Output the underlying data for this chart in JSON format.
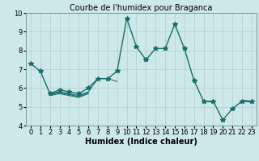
{
  "title": "Courbe de l'humidex pour Braganca",
  "xlabel": "Humidex (Indice chaleur)",
  "background_color": "#cde8e8",
  "grid_color": "#b8d0d0",
  "line_color": "#1a6e6e",
  "x_values": [
    0,
    1,
    2,
    3,
    4,
    5,
    6,
    7,
    8,
    9,
    10,
    11,
    12,
    13,
    14,
    15,
    16,
    17,
    18,
    19,
    20,
    21,
    22,
    23
  ],
  "series": [
    [
      7.3,
      6.9,
      5.7,
      5.9,
      5.8,
      5.7,
      6.0,
      6.5,
      6.5,
      6.9,
      9.7,
      8.2,
      7.5,
      8.1,
      8.1,
      9.4,
      8.1,
      6.4,
      5.3,
      5.3,
      4.3,
      4.9,
      5.3,
      5.3
    ],
    [
      null,
      null,
      5.7,
      5.8,
      5.7,
      5.6,
      5.8,
      6.5,
      6.5,
      6.35,
      null,
      null,
      null,
      null,
      null,
      null,
      null,
      null,
      5.3,
      5.25,
      null,
      null,
      5.35,
      5.3
    ],
    [
      null,
      null,
      5.65,
      5.75,
      5.65,
      5.55,
      5.75,
      null,
      null,
      null,
      null,
      null,
      null,
      null,
      null,
      null,
      null,
      null,
      null,
      5.2,
      null,
      null,
      5.3,
      5.25
    ],
    [
      null,
      null,
      5.6,
      5.7,
      5.6,
      5.5,
      5.7,
      null,
      null,
      null,
      null,
      null,
      null,
      null,
      null,
      null,
      null,
      null,
      null,
      5.15,
      null,
      null,
      null,
      5.2
    ]
  ],
  "ylim": [
    4,
    10
  ],
  "xlim": [
    -0.5,
    23.5
  ],
  "yticks": [
    4,
    5,
    6,
    7,
    8,
    9,
    10
  ],
  "xticks": [
    0,
    1,
    2,
    3,
    4,
    5,
    6,
    7,
    8,
    9,
    10,
    11,
    12,
    13,
    14,
    15,
    16,
    17,
    18,
    19,
    20,
    21,
    22,
    23
  ],
  "marker": "*",
  "markersize": 4,
  "linewidth": 1.0,
  "title_fontsize": 7,
  "axis_fontsize": 7,
  "tick_fontsize": 6
}
